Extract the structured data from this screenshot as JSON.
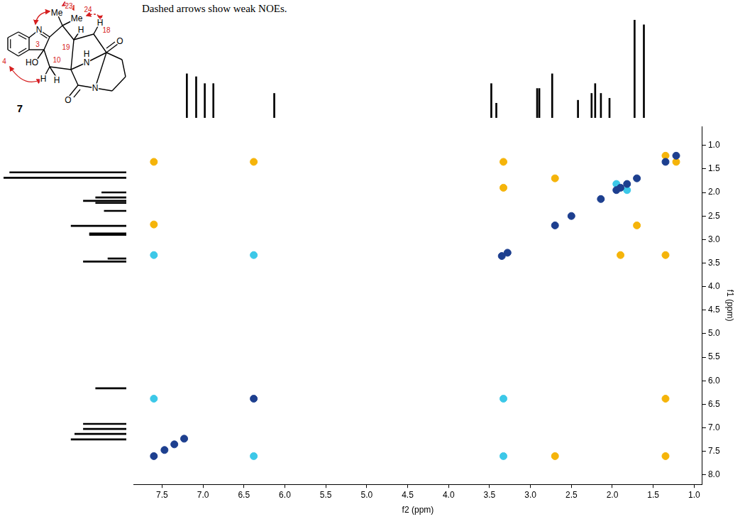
{
  "chart_data": {
    "type": "scatter",
    "x_label": "f2 (ppm)",
    "y_label": "f1 (ppm)",
    "xlim": [
      7.85,
      0.9
    ],
    "ylim": [
      8.2,
      0.6
    ],
    "xticks": [
      7.5,
      {
        "value": 7,
        "label": "7.0"
      },
      6.5,
      {
        "value": 6,
        "label": "6.0"
      },
      5.5,
      {
        "value": 5,
        "label": "5.0"
      },
      4.5,
      {
        "value": 4,
        "label": "4.0"
      },
      3.5,
      {
        "value": 3,
        "label": "3.0"
      },
      2.5,
      {
        "value": 2,
        "label": "2.0"
      },
      1.5,
      {
        "value": 1,
        "label": "1.0"
      }
    ],
    "yticks": [
      {
        "value": 1,
        "label": "1.0"
      },
      1.5,
      {
        "value": 2,
        "label": "2.0"
      },
      2.5,
      {
        "value": 3,
        "label": "3.0"
      },
      3.5,
      {
        "value": 4,
        "label": "4.0"
      },
      4.5,
      {
        "value": 5,
        "label": "5.0"
      },
      5.5,
      {
        "value": 6,
        "label": "6.0"
      },
      6.5,
      {
        "value": 7,
        "label": "7.0"
      },
      7.5,
      {
        "value": 8,
        "label": "8.0"
      }
    ],
    "grid": false,
    "series": [
      {
        "color": "#1d3f8f",
        "x": [
          7.6,
          7.47,
          7.35,
          7.23,
          6.38,
          3.35,
          3.28,
          2.7,
          2.5,
          2.14,
          1.95,
          1.9,
          1.82,
          1.7,
          1.35,
          1.22
        ],
        "values": [
          7.6,
          7.47,
          7.35,
          7.23,
          6.38,
          3.35,
          3.28,
          2.7,
          2.5,
          2.14,
          1.95,
          1.9,
          1.82,
          1.7,
          1.35,
          1.22
        ]
      },
      {
        "color": "#3cc8e8",
        "x": [
          6.38,
          3.33,
          6.38,
          7.6,
          3.33,
          7.6,
          1.95,
          1.82
        ],
        "values": [
          3.33,
          6.38,
          7.6,
          6.38,
          7.6,
          3.33,
          1.82,
          1.95
        ]
      },
      {
        "color": "#f5b40a",
        "x": [
          6.38,
          1.35,
          7.6,
          1.35,
          2.7,
          7.6,
          2.7,
          1.7,
          3.33,
          1.35,
          3.33,
          1.9,
          1.35,
          1.22
        ],
        "values": [
          1.35,
          6.38,
          1.35,
          7.6,
          7.6,
          2.68,
          1.7,
          2.7,
          1.35,
          3.33,
          1.9,
          3.33,
          1.22,
          1.35
        ]
      }
    ],
    "projection": {
      "type": "bar",
      "color": "#000000",
      "x": [
        7.6,
        7.47,
        7.35,
        7.23,
        6.38,
        3.35,
        3.28,
        2.71,
        2.68,
        2.5,
        2.14,
        1.95,
        1.9,
        1.82,
        1.7,
        1.35,
        1.22
      ],
      "values": [
        45,
        42,
        35,
        35,
        25,
        35,
        15,
        30,
        30,
        45,
        18,
        25,
        35,
        25,
        20,
        100,
        95
      ],
      "ylim": [
        0,
        100
      ],
      "tick_labels": false
    }
  },
  "structure": {
    "compound": "7",
    "caption": "Dashed arrows show weak NOEs.",
    "atoms": [
      "N",
      "Me",
      "Me",
      "HO",
      "H",
      "H",
      "H",
      "H",
      "N",
      "H",
      "O",
      "N",
      "O"
    ],
    "numbers": [
      "23",
      "24",
      "3",
      "4",
      "10",
      "19",
      "18"
    ]
  }
}
